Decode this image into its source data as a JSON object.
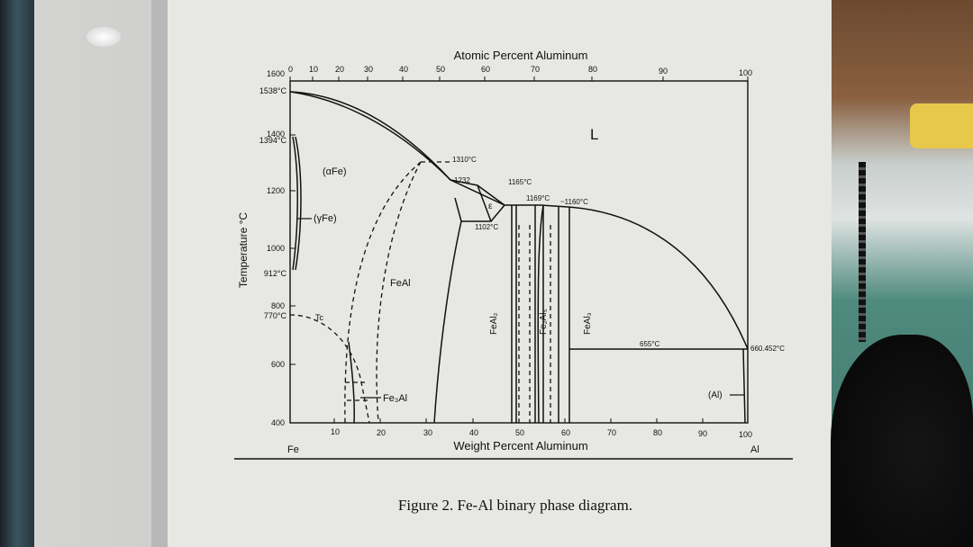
{
  "diagram": {
    "title_top_axis": "Atomic Percent Aluminum",
    "title_bottom_axis": "Weight Percent Aluminum",
    "y_axis_label": "Temperature °C",
    "top_ticks": [
      "0",
      "10",
      "20",
      "30",
      "40",
      "50",
      "60",
      "70",
      "80",
      "90",
      "100"
    ],
    "bottom_ticks": [
      "10",
      "20",
      "30",
      "40",
      "50",
      "60",
      "70",
      "80",
      "90",
      "100"
    ],
    "y_ticks": [
      "1600",
      "1400",
      "1200",
      "1000",
      "800",
      "600",
      "400"
    ],
    "y_special": [
      "1538°C",
      "1394°C",
      "912°C",
      "770°C"
    ],
    "left_element": "Fe",
    "right_element": "Al",
    "labels": {
      "liquid": "L",
      "alpha_fe": "(αFe)",
      "gamma_fe": "(γFe)",
      "feal": "FeAl",
      "fe3al": "Fe₃Al",
      "tc": "Tc",
      "epsilon": "ε",
      "feal2": "FeAl₂",
      "fe2al5": "Fe₂Al₅",
      "feal3": "FeAl₃",
      "al_phase": "(Al)",
      "t1310": "1310°C",
      "t1232": "1232",
      "t1165": "1165°C",
      "t1169": "1169°C",
      "t1160": "~1160°C",
      "t1102": "1102°C",
      "t655": "655°C",
      "t660": "660.452°C"
    }
  },
  "caption": "Figure 2. Fe-Al binary phase diagram."
}
